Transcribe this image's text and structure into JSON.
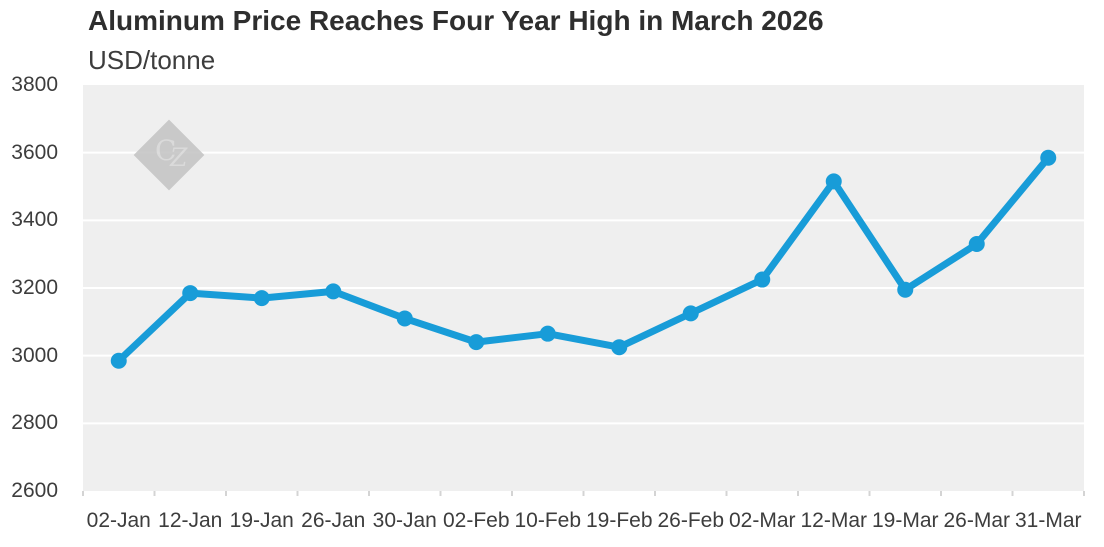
{
  "chart_data": {
    "type": "line",
    "title": "Aluminum Price Reaches Four Year High in March 2026",
    "unit_label": "USD/tonne",
    "categories": [
      "02-Jan",
      "12-Jan",
      "19-Jan",
      "26-Jan",
      "30-Jan",
      "02-Feb",
      "10-Feb",
      "19-Feb",
      "26-Feb",
      "02-Mar",
      "12-Mar",
      "19-Mar",
      "26-Mar",
      "31-Mar"
    ],
    "values": [
      2985,
      3185,
      3170,
      3190,
      3110,
      3040,
      3065,
      3025,
      3125,
      3225,
      3515,
      3195,
      3330,
      3585
    ],
    "ylim": [
      2600,
      3800
    ],
    "yticks": [
      2600,
      2800,
      3000,
      3200,
      3400,
      3600,
      3800
    ],
    "grid": "horizontal-white",
    "legend": "none",
    "line_color": "#189cd8",
    "plot_bg": "#efefef",
    "watermark": {
      "letter_c": "C",
      "letter_z": "Z",
      "shape": "diamond",
      "diamond_color": "#c4c4c4",
      "letter_color": "#d8d8d8"
    },
    "colors": {
      "title_text": "#2e2e2e",
      "tick_text": "#3d3d3d",
      "gridline": "#ffffff",
      "axis_tick_mark": "#d4d4d4"
    }
  }
}
